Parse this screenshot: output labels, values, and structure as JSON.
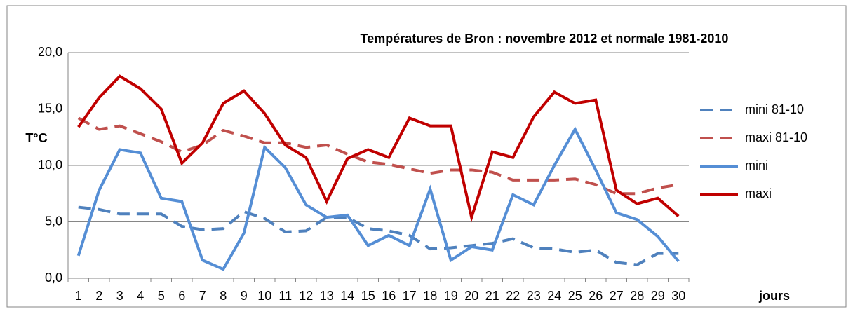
{
  "chart_data": {
    "type": "line",
    "title": "Températures de Bron : novembre 2012 et normale 1981-2010",
    "y_label": "T°C",
    "x_label": "jours",
    "categories": [
      "1",
      "2",
      "3",
      "4",
      "5",
      "6",
      "7",
      "8",
      "9",
      "10",
      "11",
      "12",
      "13",
      "14",
      "15",
      "16",
      "17",
      "18",
      "19",
      "20",
      "21",
      "22",
      "23",
      "24",
      "25",
      "26",
      "27",
      "28",
      "29",
      "30"
    ],
    "ylim": [
      0,
      20
    ],
    "yticks": [
      {
        "value": 0,
        "label": "0,0"
      },
      {
        "value": 5,
        "label": "5,0"
      },
      {
        "value": 10,
        "label": "10,0"
      },
      {
        "value": 15,
        "label": "15,0"
      },
      {
        "value": 20,
        "label": "20,0"
      }
    ],
    "grid": true,
    "legend": "right",
    "series": [
      {
        "name": "mini 81-10",
        "color": "#4f81bd",
        "dashed": true,
        "values": [
          6.3,
          6.1,
          5.7,
          5.7,
          5.7,
          4.6,
          4.3,
          4.4,
          5.9,
          5.3,
          4.1,
          4.2,
          5.4,
          5.4,
          4.4,
          4.2,
          3.8,
          2.6,
          2.7,
          2.9,
          3.1,
          3.5,
          2.7,
          2.6,
          2.3,
          2.5,
          1.4,
          1.2,
          2.2,
          2.2
        ]
      },
      {
        "name": "maxi 81-10",
        "color": "#c0504d",
        "dashed": true,
        "values": [
          14.2,
          13.2,
          13.5,
          12.8,
          12.1,
          11.2,
          11.8,
          13.1,
          12.6,
          12.0,
          12.0,
          11.6,
          11.8,
          11.0,
          10.3,
          10.1,
          9.7,
          9.3,
          9.6,
          9.6,
          9.4,
          8.7,
          8.7,
          8.7,
          8.8,
          8.3,
          7.5,
          7.5,
          8.0,
          8.3
        ]
      },
      {
        "name": "mini",
        "color": "#558ed5",
        "dashed": false,
        "values": [
          2.0,
          7.8,
          11.4,
          11.1,
          7.1,
          6.8,
          1.6,
          0.8,
          4.0,
          11.6,
          9.8,
          6.5,
          5.4,
          5.6,
          2.9,
          3.8,
          2.9,
          7.9,
          1.6,
          2.8,
          2.5,
          7.4,
          6.5,
          10.0,
          13.2,
          9.6,
          5.8,
          5.2,
          3.7,
          1.5
        ]
      },
      {
        "name": "maxi",
        "color": "#c00000",
        "dashed": false,
        "values": [
          13.4,
          16.0,
          17.9,
          16.8,
          15.0,
          10.2,
          12.0,
          15.5,
          16.6,
          14.6,
          11.8,
          10.7,
          6.8,
          10.6,
          11.4,
          10.7,
          14.2,
          13.5,
          13.5,
          5.4,
          11.2,
          10.7,
          14.3,
          16.5,
          15.5,
          15.8,
          7.8,
          6.6,
          7.1,
          5.5
        ]
      }
    ]
  }
}
